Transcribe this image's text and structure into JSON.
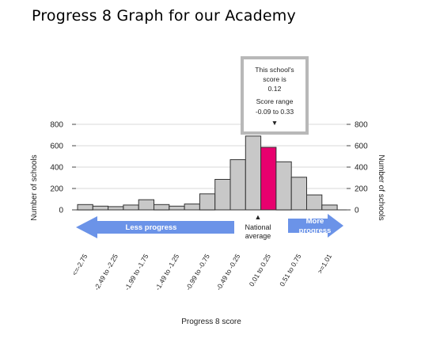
{
  "page": {
    "title": "Progress 8 Graph for our Academy"
  },
  "colors": {
    "bar": "#c8c8c8",
    "bar_stroke": "#333333",
    "highlight": "#e8006e",
    "arrow": "#6b93e8",
    "callout_border": "#b8b8b8",
    "grid": "#d9d9d9"
  },
  "callout": {
    "lines": [
      "This school's",
      "score is",
      "0.12",
      "Score range",
      "-0.09 to 0.33"
    ],
    "marker": "▼"
  },
  "annotations": {
    "less_progress": "Less progress",
    "more_progress_1": "More",
    "more_progress_2": "progress",
    "national_1": "National",
    "national_2": "average",
    "national_marker": "▲"
  },
  "chart_data": {
    "type": "bar",
    "title": "",
    "xlabel": "Progress 8 score",
    "ylabel": "Number of schools",
    "ylabel_right": "Number of schools",
    "ylim": [
      0,
      800
    ],
    "yticks": [
      0,
      200,
      400,
      600,
      800
    ],
    "grid": true,
    "categories": [
      "<=-2.75",
      "",
      "-2.49 to -2.25",
      "",
      "-1.99 to -1.75",
      "",
      "-1.49 to -1.25",
      "",
      "-0.99 to -0.75",
      "",
      "-0.49 to -0.25",
      "",
      "0.01 to 0.25",
      "",
      "0.51 to 0.75",
      "",
      ">=1.01"
    ],
    "values": [
      50,
      35,
      30,
      45,
      95,
      50,
      35,
      55,
      150,
      285,
      470,
      690,
      585,
      450,
      305,
      140,
      45
    ],
    "highlight_index": 12,
    "national_average_index": 11
  }
}
